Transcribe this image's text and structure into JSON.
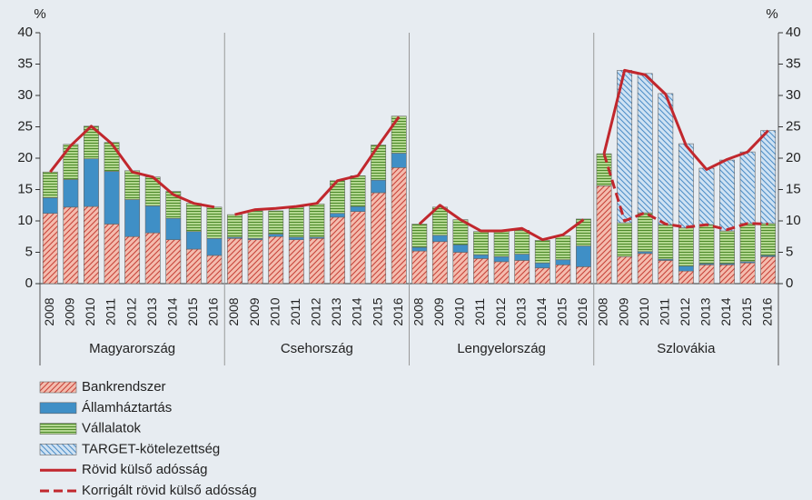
{
  "chart_data": {
    "type": "bar",
    "y_unit": "%",
    "groups": [
      "Magyarország",
      "Csehország",
      "Lengyelország",
      "Szlovákia"
    ],
    "categories": [
      "2008",
      "2009",
      "2010",
      "2011",
      "2012",
      "2013",
      "2014",
      "2015",
      "2016",
      "2008",
      "2009",
      "2010",
      "2011",
      "2012",
      "2013",
      "2014",
      "2015",
      "2016",
      "2008",
      "2009",
      "2010",
      "2011",
      "2012",
      "2013",
      "2014",
      "2015",
      "2016",
      "2008",
      "2009",
      "2010",
      "2011",
      "2012",
      "2013",
      "2014",
      "2015",
      "2016"
    ],
    "ylim": [
      0,
      40
    ],
    "yticks": [
      0,
      5,
      10,
      15,
      20,
      25,
      30,
      35,
      40
    ],
    "series": [
      {
        "name": "Bankrendszer",
        "type": "bar",
        "color": "#f4bcae",
        "hatch": "diagonal",
        "hatch_color": "#c8443a",
        "values": [
          11.2,
          12.2,
          12.3,
          9.5,
          7.5,
          8.1,
          7.0,
          5.5,
          4.5,
          7.2,
          7.0,
          7.5,
          7.0,
          7.2,
          10.6,
          11.5,
          14.5,
          18.5,
          5.2,
          6.7,
          5.0,
          4.0,
          3.5,
          3.7,
          2.5,
          3.0,
          2.7,
          15.6,
          4.3,
          4.8,
          3.7,
          2.0,
          3.0,
          3.0,
          3.3,
          4.3
        ]
      },
      {
        "name": "Államháztartás",
        "type": "bar",
        "color": "#3f8fc6",
        "hatch": "none",
        "hatch_color": "#3f8fc6",
        "values": [
          2.5,
          4.4,
          7.6,
          8.4,
          5.9,
          4.3,
          3.4,
          2.8,
          2.7,
          0.2,
          0.2,
          0.4,
          0.4,
          0.2,
          0.6,
          0.8,
          2.0,
          2.3,
          0.6,
          1.0,
          1.2,
          0.6,
          0.8,
          1.0,
          0.8,
          0.8,
          3.3,
          null,
          0.0,
          0.3,
          0.2,
          0.8,
          0.2,
          0.2,
          0.2,
          0.2
        ]
      },
      {
        "name": "Vállalatok",
        "type": "bar",
        "color": "#b2d68f",
        "hatch": "horizontal",
        "hatch_color": "#4d8a2a",
        "values": [
          4.1,
          5.6,
          5.2,
          4.6,
          4.6,
          4.6,
          4.3,
          4.5,
          5.0,
          3.6,
          4.4,
          3.7,
          4.8,
          5.3,
          5.2,
          4.9,
          5.6,
          5.9,
          3.7,
          4.5,
          4.0,
          3.7,
          4.1,
          3.8,
          3.6,
          3.8,
          4.3,
          5.1,
          5.4,
          6.2,
          5.5,
          6.1,
          6.2,
          5.2,
          6.1,
          5.1
        ]
      },
      {
        "name": "TARGET-kötelezettség",
        "type": "bar",
        "color": "#cfe2f3",
        "hatch": "diagonal-back",
        "hatch_color": "#4f8fc8",
        "values": [
          null,
          null,
          null,
          null,
          null,
          null,
          null,
          null,
          null,
          null,
          null,
          null,
          null,
          null,
          null,
          null,
          null,
          null,
          null,
          null,
          null,
          null,
          null,
          null,
          null,
          null,
          null,
          null,
          24.3,
          22.2,
          20.9,
          13.4,
          9.0,
          11.3,
          11.4,
          14.8
        ]
      },
      {
        "name": "Rövid külső adósság",
        "type": "line",
        "color": "#c1272d",
        "dashed": false,
        "values": [
          17.8,
          22.0,
          25.1,
          22.3,
          17.8,
          17.0,
          14.2,
          12.8,
          12.2,
          11.0,
          11.8,
          12.0,
          12.3,
          12.8,
          16.4,
          17.2,
          22.0,
          26.6,
          9.5,
          12.5,
          10.2,
          8.4,
          8.4,
          8.8,
          7.0,
          7.8,
          10.2,
          20.7,
          34.0,
          33.3,
          30.2,
          22.0,
          18.2,
          19.8,
          21.0,
          24.4
        ]
      },
      {
        "name": "Korrigált rövid külső adósság",
        "type": "line",
        "color": "#c1272d",
        "dashed": true,
        "values": [
          null,
          null,
          null,
          null,
          null,
          null,
          null,
          null,
          null,
          null,
          null,
          null,
          null,
          null,
          null,
          null,
          null,
          null,
          null,
          null,
          null,
          null,
          null,
          null,
          null,
          null,
          null,
          20.7,
          10.0,
          11.3,
          9.5,
          9.0,
          9.4,
          8.6,
          9.6,
          9.5
        ]
      }
    ]
  }
}
